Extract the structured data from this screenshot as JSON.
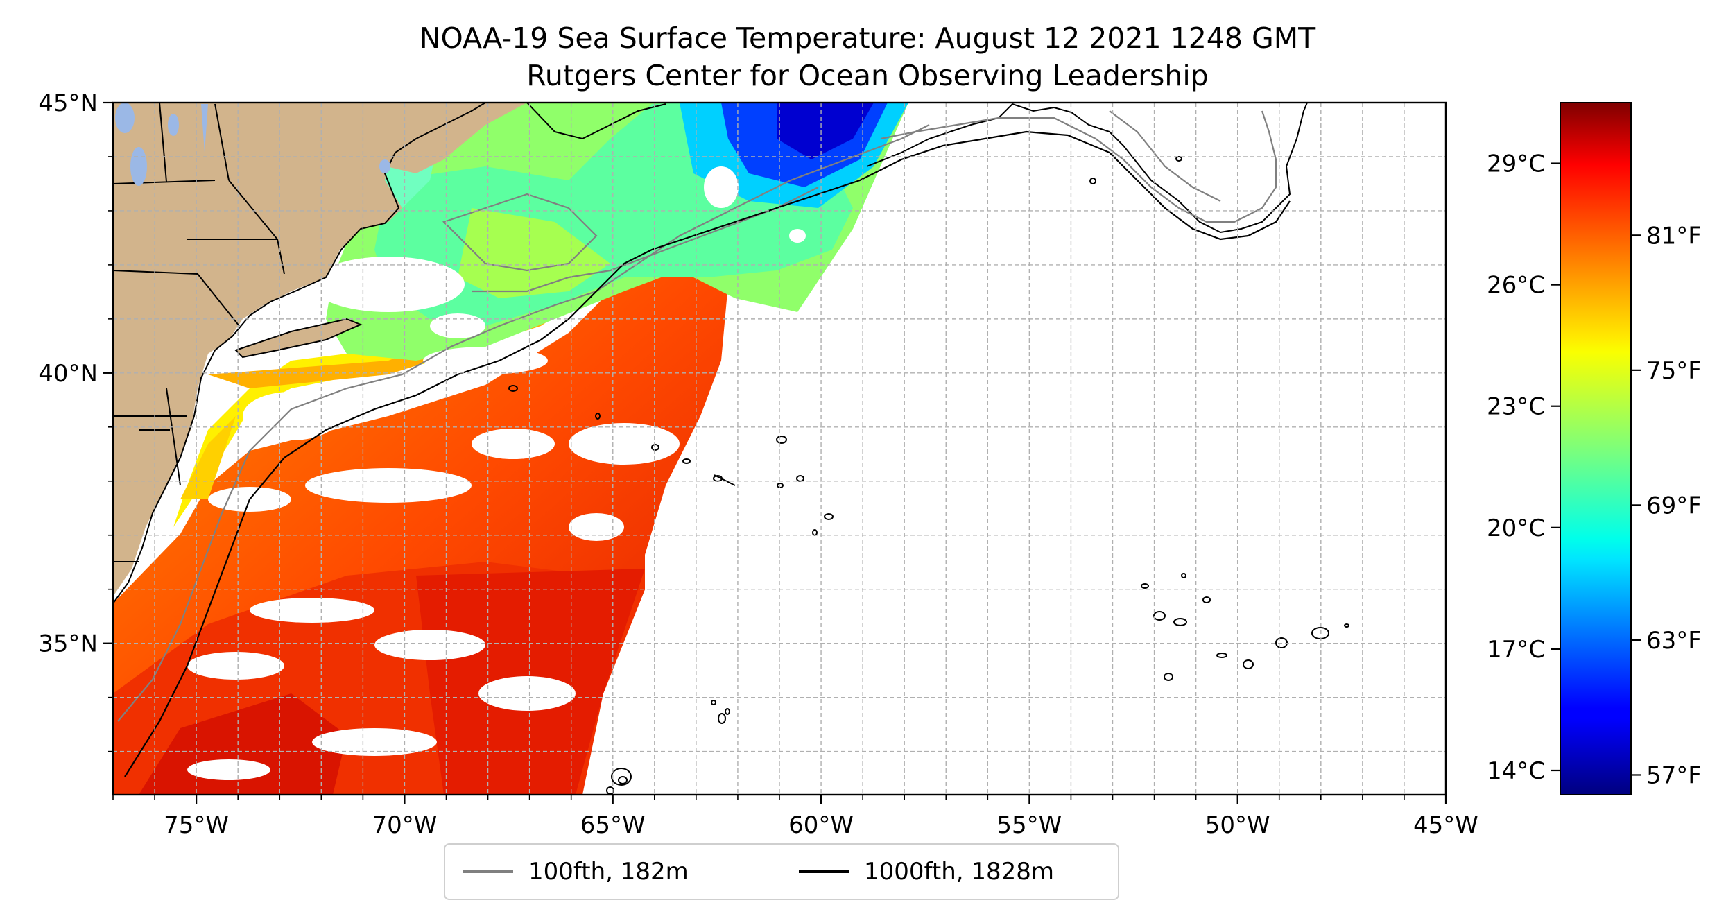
{
  "title": {
    "line1": "NOAA-19 Sea Surface Temperature: August 12 2021 1248 GMT",
    "line2": "Rutgers Center for Ocean Observing Leadership"
  },
  "map": {
    "lon_range": [
      -77,
      -45
    ],
    "lat_range": [
      32.2,
      45
    ],
    "x_ticks": [
      {
        "value": -75,
        "label": "75°W"
      },
      {
        "value": -70,
        "label": "70°W"
      },
      {
        "value": -65,
        "label": "65°W"
      },
      {
        "value": -60,
        "label": "60°W"
      },
      {
        "value": -55,
        "label": "55°W"
      },
      {
        "value": -50,
        "label": "50°W"
      },
      {
        "value": -45,
        "label": "45°W"
      }
    ],
    "y_ticks": [
      {
        "value": 45,
        "label": "45°N"
      },
      {
        "value": 40,
        "label": "40°N"
      },
      {
        "value": 35,
        "label": "35°N"
      }
    ],
    "gridlines": true,
    "land_color": "#d2b48c",
    "lake_color": "#9bb8e6"
  },
  "colorbar": {
    "colormap": "jet",
    "range_c": [
      13.4,
      30.5
    ],
    "celsius_ticks": [
      {
        "value": 14,
        "label": "14°C"
      },
      {
        "value": 17,
        "label": "17°C"
      },
      {
        "value": 20,
        "label": "20°C"
      },
      {
        "value": 23,
        "label": "23°C"
      },
      {
        "value": 26,
        "label": "26°C"
      },
      {
        "value": 29,
        "label": "29°C"
      }
    ],
    "fahrenheit_ticks": [
      {
        "value": 57,
        "label": "57°F"
      },
      {
        "value": 63,
        "label": "63°F"
      },
      {
        "value": 69,
        "label": "69°F"
      },
      {
        "value": 75,
        "label": "75°F"
      },
      {
        "value": 81,
        "label": "81°F"
      }
    ]
  },
  "legend": {
    "items": [
      {
        "label": "100fth, 182m",
        "color": "#808080"
      },
      {
        "label": "1000fth, 1828m",
        "color": "#000000"
      }
    ]
  }
}
